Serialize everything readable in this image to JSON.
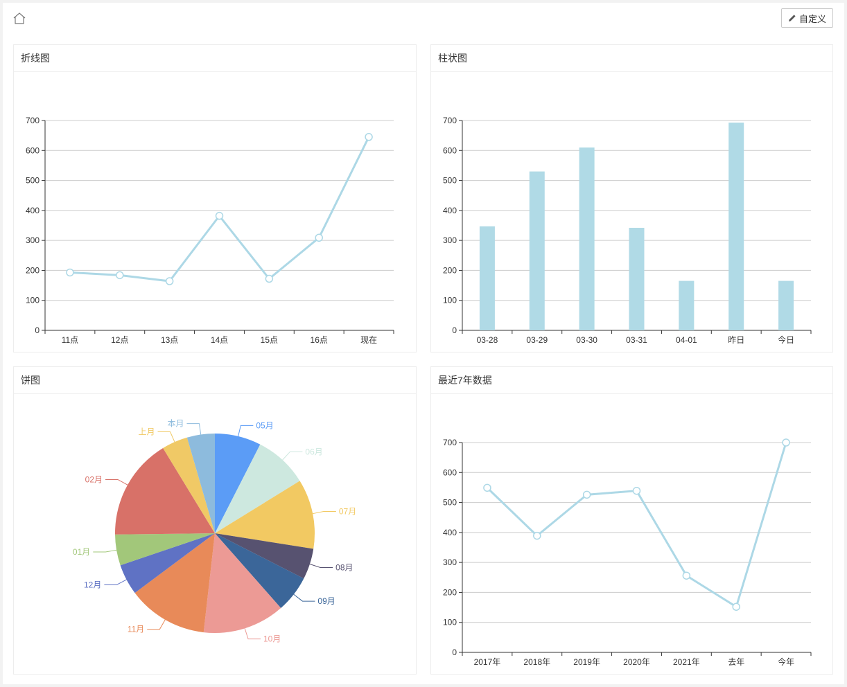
{
  "toolbar": {
    "home_icon": "home-icon",
    "custom_label": "自定义",
    "custom_icon": "pencil-icon"
  },
  "colors": {
    "line": "#add8e6",
    "bar": "#b0dae6",
    "grid": "#cccccc",
    "axis": "#333333"
  },
  "cards": {
    "line": {
      "title": "折线图"
    },
    "bar": {
      "title": "柱状图"
    },
    "pie": {
      "title": "饼图"
    },
    "years": {
      "title": "最近7年数据"
    }
  },
  "chart_data": [
    {
      "type": "line",
      "categories": [
        "11点",
        "12点",
        "13点",
        "14点",
        "15点",
        "16点",
        "现在"
      ],
      "values": [
        193,
        184,
        164,
        382,
        172,
        309,
        645
      ],
      "ylim": [
        0,
        700
      ],
      "yticks": [
        0,
        100,
        200,
        300,
        400,
        500,
        600,
        700
      ],
      "grid": true
    },
    {
      "type": "bar",
      "categories": [
        "03-28",
        "03-29",
        "03-30",
        "03-31",
        "04-01",
        "昨日",
        "今日"
      ],
      "values": [
        347,
        530,
        610,
        342,
        165,
        693,
        165
      ],
      "ylim": [
        0,
        700
      ],
      "yticks": [
        0,
        100,
        200,
        300,
        400,
        500,
        600,
        700
      ],
      "grid": true
    },
    {
      "type": "pie",
      "slices": [
        {
          "label": "05月",
          "value": 7.5,
          "color": "#5b9cf6"
        },
        {
          "label": "06月",
          "value": 8.7,
          "color": "#cde8df"
        },
        {
          "label": "07月",
          "value": 11.3,
          "color": "#f2c962"
        },
        {
          "label": "08月",
          "value": 5.0,
          "color": "#575270"
        },
        {
          "label": "09月",
          "value": 6.0,
          "color": "#3b6699"
        },
        {
          "label": "10月",
          "value": 13.3,
          "color": "#ec9a95"
        },
        {
          "label": "11月",
          "value": 13.0,
          "color": "#e88a59"
        },
        {
          "label": "12月",
          "value": 5.0,
          "color": "#5f72c4"
        },
        {
          "label": "01月",
          "value": 5.0,
          "color": "#a2c77a"
        },
        {
          "label": "02月",
          "value": 16.5,
          "color": "#d87168"
        },
        {
          "label": "上月",
          "value": 4.2,
          "color": "#f0c966"
        },
        {
          "label": "本月",
          "value": 4.5,
          "color": "#8dbbdd"
        }
      ]
    },
    {
      "type": "line",
      "categories": [
        "2017年",
        "2018年",
        "2019年",
        "2020年",
        "2021年",
        "去年",
        "今年"
      ],
      "values": [
        549,
        389,
        526,
        539,
        256,
        152,
        700
      ],
      "ylim": [
        0,
        700
      ],
      "yticks": [
        0,
        100,
        200,
        300,
        400,
        500,
        600,
        700
      ],
      "grid": true
    }
  ]
}
